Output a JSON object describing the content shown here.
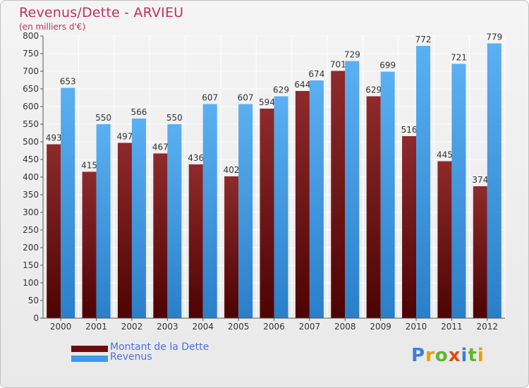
{
  "header": {
    "title": "Revenus/Dette - ARVIEU",
    "subtitle": "(en milliers d'€)"
  },
  "legend": {
    "items": [
      {
        "label": "Montant de la Dette",
        "color": "#6b0d0d"
      },
      {
        "label": "Revenus",
        "color": "#3d9be9"
      }
    ]
  },
  "logo": {
    "text": "Proxiti"
  },
  "chart_data": {
    "type": "bar",
    "categories": [
      "2000",
      "2001",
      "2002",
      "2003",
      "2004",
      "2005",
      "2006",
      "2007",
      "2008",
      "2009",
      "2010",
      "2011",
      "2012"
    ],
    "series": [
      {
        "name": "Montant de la Dette",
        "color": "#6b0d0d",
        "values": [
          493,
          415,
          497,
          467,
          436,
          402,
          594,
          644,
          701,
          629,
          516,
          445,
          374
        ]
      },
      {
        "name": "Revenus",
        "color": "#3d9be9",
        "values": [
          653,
          550,
          566,
          550,
          607,
          607,
          629,
          674,
          729,
          699,
          772,
          721,
          779
        ]
      }
    ],
    "title": "Revenus/Dette - ARVIEU",
    "ylabel": "(en milliers d'€)",
    "ylim": [
      0,
      800
    ],
    "yticks": [
      0,
      50,
      100,
      150,
      200,
      250,
      300,
      350,
      400,
      450,
      500,
      550,
      600,
      650,
      700,
      750,
      800
    ],
    "grid": true
  }
}
